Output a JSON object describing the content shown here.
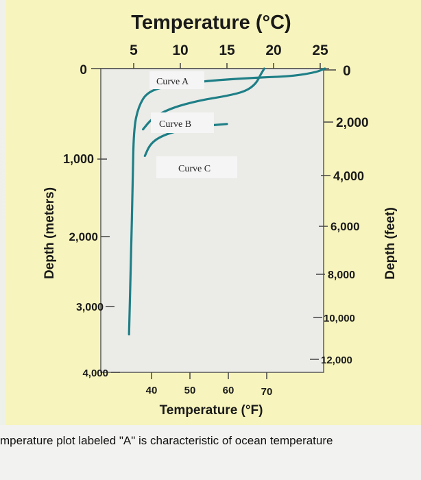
{
  "caption": "mperature plot labeled \"A\" is characteristic of ocean temperature",
  "colors": {
    "panel": "#f7f4bd",
    "plot_bg": "#ebebe8",
    "curve": "#1e7f86"
  },
  "chart_data": {
    "type": "line",
    "top_axis_title": "Temperature (°C)",
    "bottom_axis_title": "Temperature (°F)",
    "left_axis_title": "Depth (meters)",
    "right_axis_title": "Depth (feet)",
    "celsius_ticks": [
      "5",
      "10",
      "15",
      "20",
      "25"
    ],
    "fahrenheit_ticks": [
      "40",
      "50",
      "60",
      "70"
    ],
    "meter_ticks": [
      "0",
      "1,000",
      "2,000",
      "3,000",
      "4,000"
    ],
    "feet_ticks": [
      "0",
      "2,000",
      "4,000",
      "6,000",
      "8,000",
      "10,000",
      "12,000"
    ],
    "x_unit": "°C",
    "y_unit": "m",
    "xlim": [
      4,
      26
    ],
    "ylim": [
      0,
      4000
    ],
    "grid": false,
    "series": [
      {
        "name": "Curve A",
        "x": [
          25.5,
          24.5,
          22,
          18,
          13,
          9,
          6.5,
          5.5,
          5,
          4.9,
          4.7,
          4.5
        ],
        "y": [
          0,
          50,
          100,
          120,
          160,
          220,
          300,
          500,
          800,
          1500,
          2500,
          3500
        ]
      },
      {
        "name": "Curve B",
        "x": [
          19,
          18.6,
          18.1,
          17,
          15,
          12,
          9,
          7,
          6
        ],
        "y": [
          0,
          80,
          200,
          300,
          360,
          420,
          520,
          650,
          800
        ]
      },
      {
        "name": "Curve C",
        "x": [
          15,
          12,
          9,
          7.5,
          6.7,
          6.2
        ],
        "y": [
          730,
          760,
          840,
          920,
          1010,
          1150
        ]
      }
    ]
  }
}
